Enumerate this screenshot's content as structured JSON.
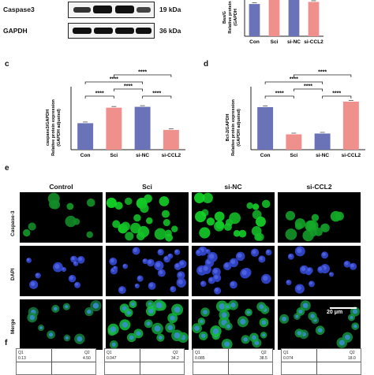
{
  "western_blot": {
    "rows": [
      {
        "label": "Caspase3",
        "kda": "19 kDa"
      },
      {
        "label": "GAPDH",
        "kda": "36 kDa"
      }
    ]
  },
  "panels": {
    "c": "c",
    "d": "d",
    "e": "e",
    "f": "f"
  },
  "chart_data": [
    {
      "type": "bar",
      "panel": "b",
      "categories": [
        "Con",
        "Sci",
        "si-NC",
        "si-CCL2"
      ],
      "values": [
        0.62,
        0.9,
        0.9,
        0.66
      ],
      "ylabel": "Bax/G\nRelative protein\n(GAPDH",
      "colors": [
        "#6a73b8",
        "#f0908c",
        "#6a73b8",
        "#f0908c"
      ]
    },
    {
      "type": "bar",
      "panel": "c",
      "categories": [
        "Con",
        "Sci",
        "si-NC",
        "si-CCL2"
      ],
      "values": [
        0.63,
        1.0,
        1.02,
        0.47
      ],
      "ylim": [
        0,
        1.5
      ],
      "ylabel_lines": [
        "caspase3/GAPDH",
        "Relative protein expression",
        "(GAPDH adjusted)"
      ],
      "colors": [
        "#6a73b8",
        "#f0908c",
        "#6a73b8",
        "#f0908c"
      ],
      "significance": [
        {
          "from": 0,
          "to": 1,
          "label": "****",
          "level": 0
        },
        {
          "from": 1,
          "to": 2,
          "label": "****",
          "level": 1
        },
        {
          "from": 2,
          "to": 3,
          "label": "****",
          "level": 0
        },
        {
          "from": 0,
          "to": 2,
          "label": "****",
          "level": 2
        },
        {
          "from": 1,
          "to": 3,
          "label": "****",
          "level": 3
        }
      ]
    },
    {
      "type": "bar",
      "panel": "d",
      "categories": [
        "Con",
        "Sci",
        "si-NC",
        "si-CCL2"
      ],
      "values": [
        1.08,
        0.39,
        0.41,
        1.22
      ],
      "ylim": [
        0,
        1.6
      ],
      "ylabel_lines": [
        "Bcl-2/GAPDH",
        "Relative protein expression",
        "(GAPDH adjusted)"
      ],
      "colors": [
        "#6a73b8",
        "#f0908c",
        "#6a73b8",
        "#f0908c"
      ],
      "significance": [
        {
          "from": 0,
          "to": 1,
          "label": "****",
          "level": 0
        },
        {
          "from": 1,
          "to": 2,
          "label": "****",
          "level": 1
        },
        {
          "from": 2,
          "to": 3,
          "label": "****",
          "level": 0
        },
        {
          "from": 0,
          "to": 2,
          "label": "****",
          "level": 2
        },
        {
          "from": 1,
          "to": 3,
          "label": "****",
          "level": 3
        }
      ]
    }
  ],
  "microscopy": {
    "columns": [
      "Control",
      "Sci",
      "si-NC",
      "si-CCL2"
    ],
    "rows": [
      "Caspase-3",
      "DAPI",
      "Merge"
    ],
    "scale_bar": "20 μm"
  },
  "flow": {
    "plots": [
      {
        "q1": "Q1",
        "q2": "Q2",
        "v1": "0.13",
        "v2": "4.50"
      },
      {
        "q1": "Q1",
        "q2": "Q2",
        "v1": "0.047",
        "v2": "34.2"
      },
      {
        "q1": "Q1",
        "q2": "Q2",
        "v1": "0.085",
        "v2": "38.5"
      },
      {
        "q1": "Q1",
        "q2": "Q2",
        "v1": "0.074",
        "v2": "18.0"
      }
    ]
  }
}
